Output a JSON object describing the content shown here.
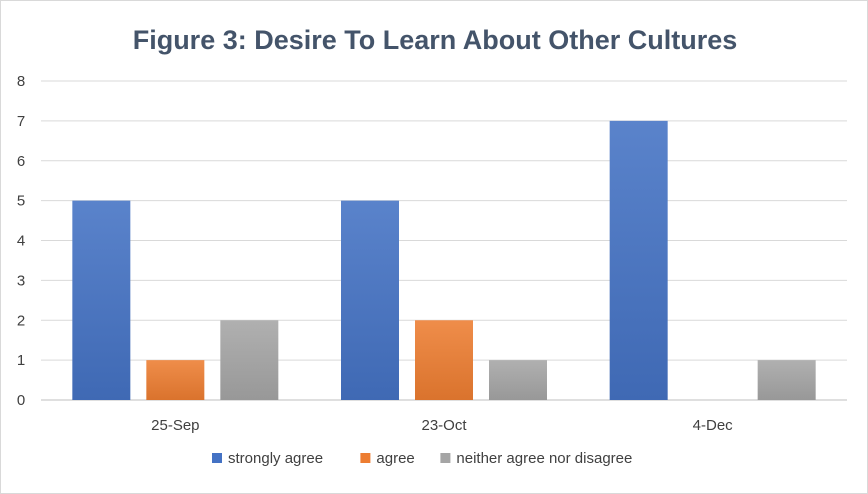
{
  "chart_data": {
    "type": "bar",
    "title": "Figure 3: Desire To Learn About Other Cultures",
    "categories": [
      "25-Sep",
      "23-Oct",
      "4-Dec"
    ],
    "series": [
      {
        "name": "strongly agree",
        "values": [
          5,
          5,
          7
        ],
        "color": "#4472c4"
      },
      {
        "name": "agree",
        "values": [
          1,
          2,
          0
        ],
        "color": "#ed7d31"
      },
      {
        "name": "neither agree nor disagree",
        "values": [
          2,
          1,
          1
        ],
        "color": "#a5a5a5"
      }
    ],
    "yticks": [
      "0",
      "1",
      "2",
      "3",
      "4",
      "5",
      "6",
      "7",
      "8"
    ],
    "ylim": [
      0,
      8
    ],
    "grid": true,
    "legend": "bottom"
  }
}
